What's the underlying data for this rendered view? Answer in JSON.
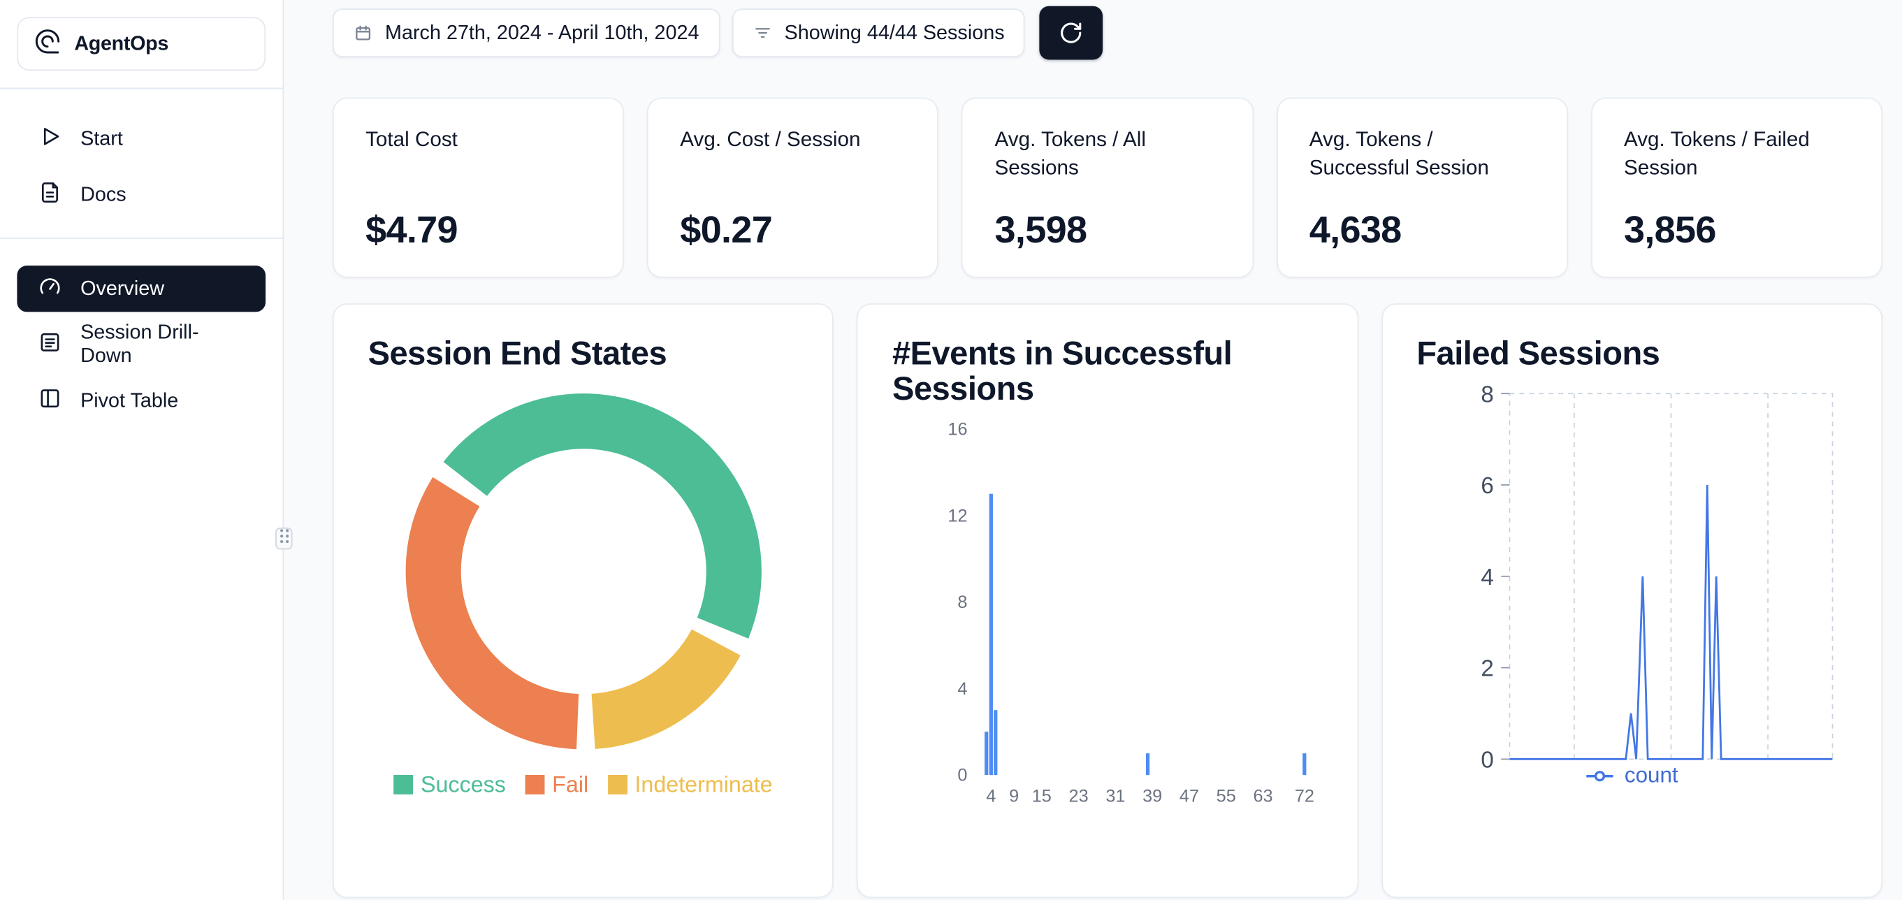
{
  "app": {
    "name": "AgentOps"
  },
  "sidebar": {
    "primary": [
      {
        "label": "Start",
        "icon": "play-icon"
      },
      {
        "label": "Docs",
        "icon": "docs-icon"
      }
    ],
    "secondary": [
      {
        "label": "Overview",
        "icon": "gauge-icon",
        "active": true
      },
      {
        "label": "Session Drill-Down",
        "icon": "list-icon",
        "active": false
      },
      {
        "label": "Pivot Table",
        "icon": "table-icon",
        "active": false
      }
    ]
  },
  "toolbar": {
    "date_range": "March 27th, 2024 - April 10th, 2024",
    "sessions_filter": "Showing 44/44 Sessions"
  },
  "stats": [
    {
      "label": "Total Cost",
      "value": "$4.79"
    },
    {
      "label": "Avg. Cost / Session",
      "value": "$0.27"
    },
    {
      "label": "Avg. Tokens / All Sessions",
      "value": "3,598"
    },
    {
      "label": "Avg. Tokens / Successful Session",
      "value": "4,638"
    },
    {
      "label": "Avg. Tokens / Failed Session",
      "value": "3,856"
    }
  ],
  "colors": {
    "accent_dark": "#101828",
    "background": "#f8fafc",
    "card_border": "#e7ebf1",
    "success_green": "#4cbd95",
    "fail_orange": "#ec8050",
    "indeterminate_yellow": "#eebd4f",
    "bar_blue": "#4e8cf5",
    "line_blue": "#4377e6",
    "legend_blue": "#3f6ad1",
    "axis_gray": "#6b7280",
    "grid_gray": "#c9d2de"
  },
  "chart_data": [
    {
      "type": "pie",
      "variant": "donut",
      "title": "Session End States",
      "slices": [
        {
          "label": "Success",
          "percent": 48,
          "color": "#4cbd95"
        },
        {
          "label": "Fail",
          "percent": 35,
          "color": "#ec8050"
        },
        {
          "label": "Indeterminate",
          "percent": 17,
          "color": "#eebd4f"
        }
      ],
      "values_are": "estimated percent of 44 sessions",
      "draw_order": [
        0,
        2,
        1
      ],
      "start_angle_deg": -52,
      "gap_deg": 6,
      "legend_position": "bottom"
    },
    {
      "type": "bar",
      "title": "#Events in Successful Sessions",
      "xlabel": "",
      "ylabel": "",
      "xticks": [
        4,
        9,
        15,
        23,
        31,
        39,
        47,
        55,
        63,
        72
      ],
      "xdomain": [
        1,
        75
      ],
      "yticks": [
        0,
        4,
        8,
        12,
        16
      ],
      "ylim": [
        0,
        16
      ],
      "grid": false,
      "color": "#4e8cf5",
      "bars": [
        {
          "x": 3,
          "count": 2
        },
        {
          "x": 4,
          "count": 13
        },
        {
          "x": 5,
          "count": 3
        },
        {
          "x": 38,
          "count": 1
        },
        {
          "x": 72,
          "count": 1
        }
      ]
    },
    {
      "type": "line",
      "title": "Failed Sessions",
      "legend": [
        {
          "label": "count",
          "color": "#3f6ad1"
        }
      ],
      "yticks": [
        0,
        2,
        4,
        6,
        8
      ],
      "ylim": [
        0,
        8
      ],
      "grid": "dashed-box",
      "line_color": "#4377e6",
      "x_axis_labels_visible": false,
      "points": [
        {
          "x": 0.0,
          "y": 0
        },
        {
          "x": 0.36,
          "y": 0
        },
        {
          "x": 0.376,
          "y": 1
        },
        {
          "x": 0.392,
          "y": 0
        },
        {
          "x": 0.412,
          "y": 4
        },
        {
          "x": 0.428,
          "y": 0
        },
        {
          "x": 0.598,
          "y": 0
        },
        {
          "x": 0.612,
          "y": 6
        },
        {
          "x": 0.626,
          "y": 0
        },
        {
          "x": 0.64,
          "y": 4
        },
        {
          "x": 0.655,
          "y": 0
        },
        {
          "x": 1.0,
          "y": 0
        }
      ]
    }
  ]
}
